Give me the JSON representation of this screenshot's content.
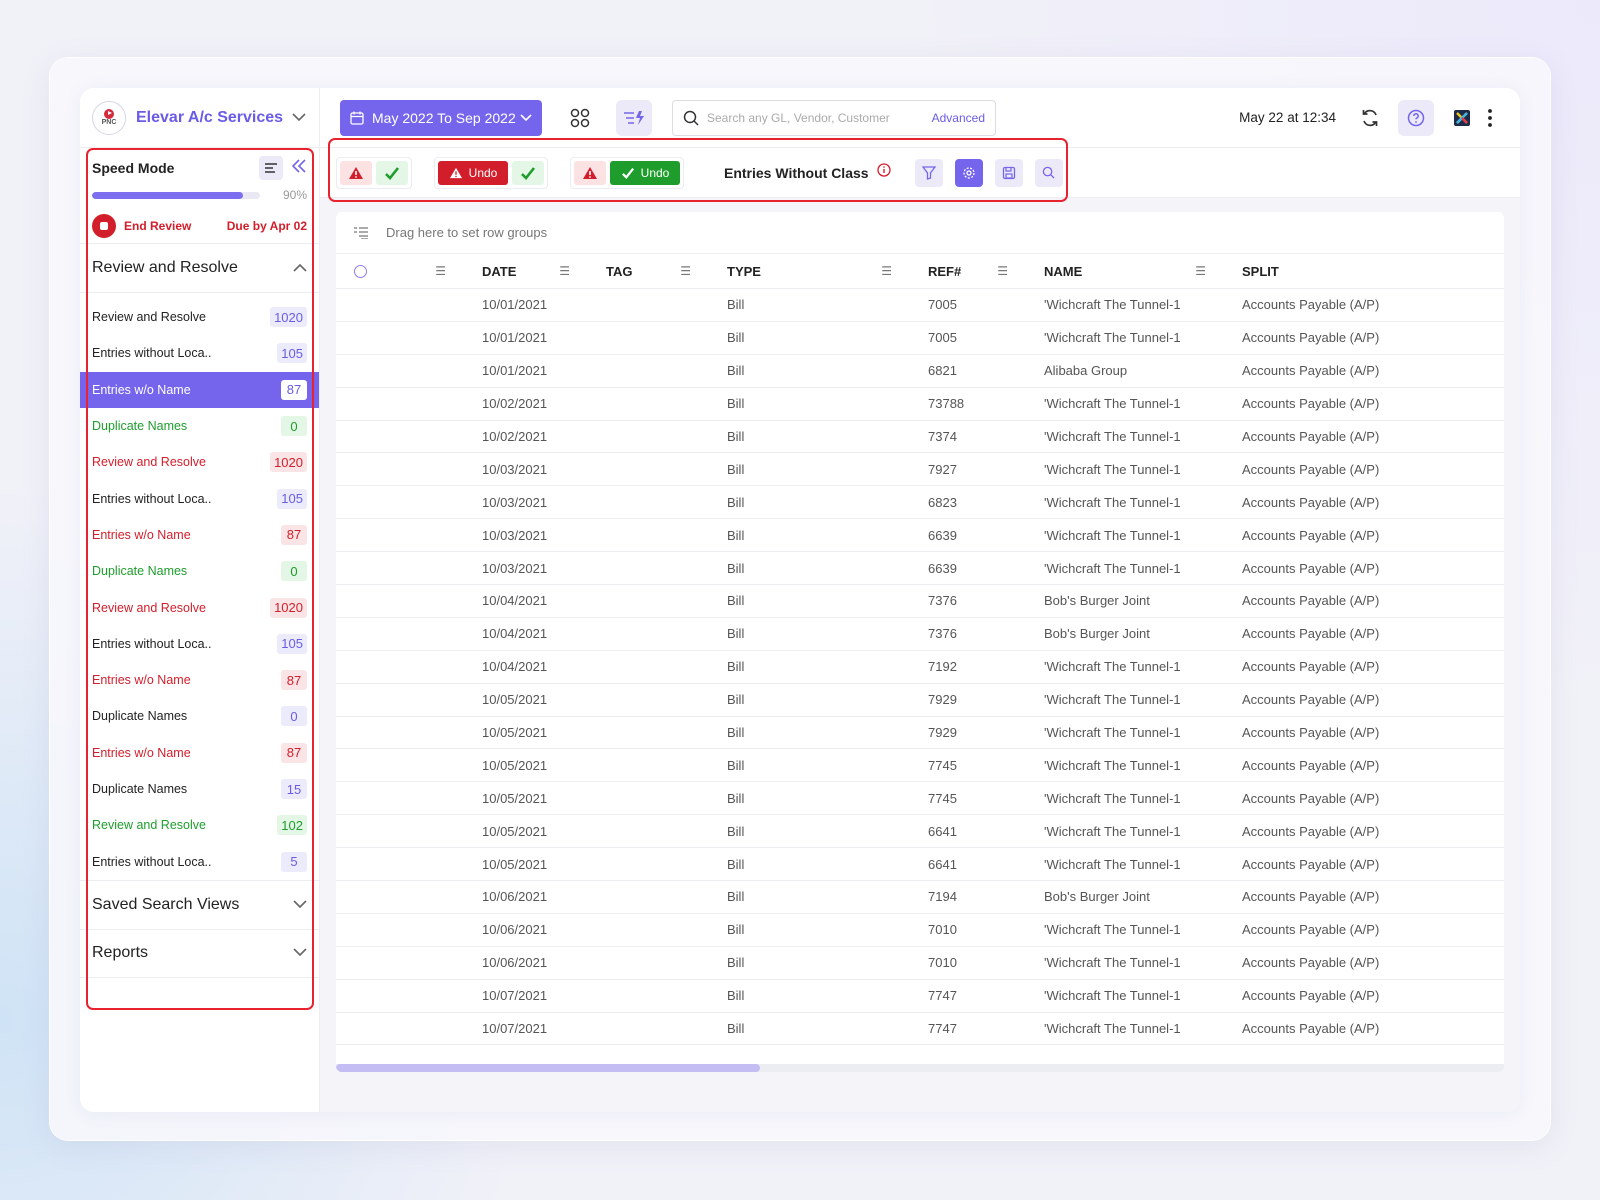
{
  "brand": {
    "name": "Elevar A/c Services",
    "logo_text": "PNC"
  },
  "speed_mode": {
    "title": "Speed Mode",
    "progress": 0.9,
    "progress_label": "90%",
    "end_label": "End Review",
    "due_label": "Due by Apr 02"
  },
  "review_section": {
    "title": "Review and Resolve",
    "items": [
      {
        "label": "Review and Resolve",
        "count": "1020",
        "tone": "black",
        "badge": "blue"
      },
      {
        "label": "Entries without Loca..",
        "count": "105",
        "tone": "black",
        "badge": "blue"
      },
      {
        "label": "Entries w/o Name",
        "count": "87",
        "tone": "active",
        "badge": "white"
      },
      {
        "label": "Duplicate Names",
        "count": "0",
        "tone": "green",
        "badge": "green"
      },
      {
        "label": "Review and Resolve",
        "count": "1020",
        "tone": "red",
        "badge": "red"
      },
      {
        "label": "Entries without Loca..",
        "count": "105",
        "tone": "black",
        "badge": "blue"
      },
      {
        "label": "Entries w/o Name",
        "count": "87",
        "tone": "red",
        "badge": "red"
      },
      {
        "label": "Duplicate Names",
        "count": "0",
        "tone": "green",
        "badge": "green"
      },
      {
        "label": "Review and Resolve",
        "count": "1020",
        "tone": "red",
        "badge": "red"
      },
      {
        "label": "Entries without Loca..",
        "count": "105",
        "tone": "black",
        "badge": "blue"
      },
      {
        "label": "Entries w/o Name",
        "count": "87",
        "tone": "red",
        "badge": "red"
      },
      {
        "label": "Duplicate Names",
        "count": "0",
        "tone": "black",
        "badge": "blue"
      },
      {
        "label": "Entries w/o Name",
        "count": "87",
        "tone": "red",
        "badge": "red"
      },
      {
        "label": "Duplicate Names",
        "count": "15",
        "tone": "black",
        "badge": "blue"
      },
      {
        "label": "Review and Resolve",
        "count": "102",
        "tone": "green",
        "badge": "green"
      },
      {
        "label": "Entries without Loca..",
        "count": "5",
        "tone": "black",
        "badge": "blue"
      }
    ]
  },
  "saved_views": {
    "title": "Saved Search Views"
  },
  "reports": {
    "title": "Reports"
  },
  "topbar": {
    "date_range": "May 2022 To Sep 2022",
    "search_placeholder": "Search any GL, Vendor, Customer",
    "advanced_label": "Advanced",
    "timestamp": "May 22 at 12:34"
  },
  "toolbar": {
    "undo_label": "Undo",
    "title": "Entries Without Class"
  },
  "grid": {
    "group_hint": "Drag here to set row groups",
    "columns": [
      "DATE",
      "TAG",
      "TYPE",
      "REF#",
      "NAME",
      "SPLIT"
    ],
    "rows": [
      [
        "10/01/2021",
        "",
        "Bill",
        "7005",
        "'Wichcraft The Tunnel-1",
        "Accounts Payable (A/P)"
      ],
      [
        "10/01/2021",
        "",
        "Bill",
        "7005",
        "'Wichcraft The Tunnel-1",
        "Accounts Payable (A/P)"
      ],
      [
        "10/01/2021",
        "",
        "Bill",
        "6821",
        "Alibaba Group",
        "Accounts Payable (A/P)"
      ],
      [
        "10/02/2021",
        "",
        "Bill",
        "73788",
        "'Wichcraft The Tunnel-1",
        "Accounts Payable (A/P)"
      ],
      [
        "10/02/2021",
        "",
        "Bill",
        "7374",
        "'Wichcraft The Tunnel-1",
        "Accounts Payable (A/P)"
      ],
      [
        "10/03/2021",
        "",
        "Bill",
        "7927",
        "'Wichcraft The Tunnel-1",
        "Accounts Payable (A/P)"
      ],
      [
        "10/03/2021",
        "",
        "Bill",
        "6823",
        "'Wichcraft The Tunnel-1",
        "Accounts Payable (A/P)"
      ],
      [
        "10/03/2021",
        "",
        "Bill",
        "6639",
        "'Wichcraft The Tunnel-1",
        "Accounts Payable (A/P)"
      ],
      [
        "10/03/2021",
        "",
        "Bill",
        "6639",
        "'Wichcraft The Tunnel-1",
        "Accounts Payable (A/P)"
      ],
      [
        "10/04/2021",
        "",
        "Bill",
        "7376",
        "Bob's Burger Joint",
        "Accounts Payable (A/P)"
      ],
      [
        "10/04/2021",
        "",
        "Bill",
        "7376",
        "Bob's Burger Joint",
        "Accounts Payable (A/P)"
      ],
      [
        "10/04/2021",
        "",
        "Bill",
        "7192",
        "'Wichcraft The Tunnel-1",
        "Accounts Payable (A/P)"
      ],
      [
        "10/05/2021",
        "",
        "Bill",
        "7929",
        "'Wichcraft The Tunnel-1",
        "Accounts Payable (A/P)"
      ],
      [
        "10/05/2021",
        "",
        "Bill",
        "7929",
        "'Wichcraft The Tunnel-1",
        "Accounts Payable (A/P)"
      ],
      [
        "10/05/2021",
        "",
        "Bill",
        "7745",
        "'Wichcraft The Tunnel-1",
        "Accounts Payable (A/P)"
      ],
      [
        "10/05/2021",
        "",
        "Bill",
        "7745",
        "'Wichcraft The Tunnel-1",
        "Accounts Payable (A/P)"
      ],
      [
        "10/05/2021",
        "",
        "Bill",
        "6641",
        "'Wichcraft The Tunnel-1",
        "Accounts Payable (A/P)"
      ],
      [
        "10/05/2021",
        "",
        "Bill",
        "6641",
        "'Wichcraft The Tunnel-1",
        "Accounts Payable (A/P)"
      ],
      [
        "10/06/2021",
        "",
        "Bill",
        "7194",
        "Bob's Burger Joint",
        "Accounts Payable (A/P)"
      ],
      [
        "10/06/2021",
        "",
        "Bill",
        "7010",
        "'Wichcraft The Tunnel-1",
        "Accounts Payable (A/P)"
      ],
      [
        "10/06/2021",
        "",
        "Bill",
        "7010",
        "'Wichcraft The Tunnel-1",
        "Accounts Payable (A/P)"
      ],
      [
        "10/07/2021",
        "",
        "Bill",
        "7747",
        "'Wichcraft The Tunnel-1",
        "Accounts Payable (A/P)"
      ],
      [
        "10/07/2021",
        "",
        "Bill",
        "7747",
        "'Wichcraft The Tunnel-1",
        "Accounts Payable (A/P)"
      ]
    ]
  },
  "colors": {
    "accent": "#7465ec",
    "danger": "#d21e2b",
    "success": "#1f9d2c",
    "highlight_box": "#e8222f"
  },
  "icons": [
    "chevron-down-icon",
    "filter-lines-icon",
    "double-chevron-left-icon",
    "calendar-icon",
    "grid-icon",
    "speed-sort-icon",
    "search-icon",
    "refresh-icon",
    "help-icon",
    "app-logo-icon",
    "kebab-icon",
    "warning-icon",
    "check-icon",
    "info-icon",
    "filter-icon",
    "settings-icon",
    "save-icon",
    "row-group-icon",
    "column-menu-icon"
  ]
}
